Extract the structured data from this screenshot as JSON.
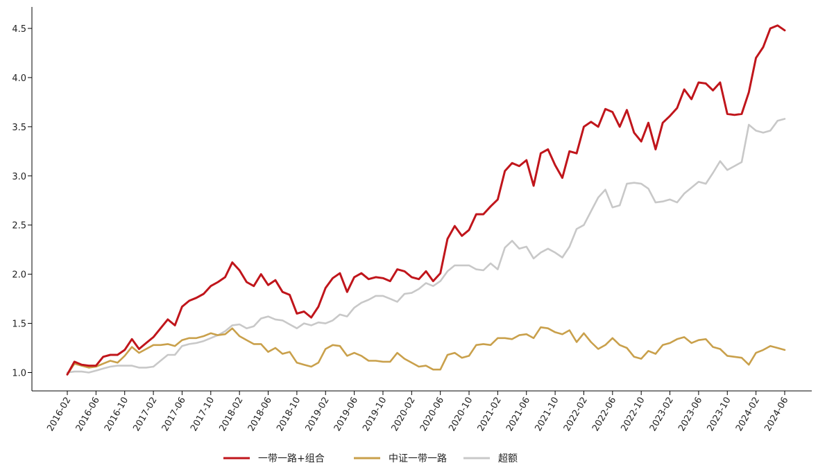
{
  "chart_data": {
    "type": "line",
    "title": "",
    "xlabel": "",
    "ylabel": "",
    "ylim": [
      0.85,
      4.7
    ],
    "yticks": [
      "1.0",
      "1.5",
      "2.0",
      "2.5",
      "3.0",
      "3.5",
      "4.0",
      "4.5"
    ],
    "ytick_values": [
      1.0,
      1.5,
      2.0,
      2.5,
      3.0,
      3.5,
      4.0,
      4.5
    ],
    "xtick_labels": [
      "2016-02",
      "2016-06",
      "2016-10",
      "2017-02",
      "2017-06",
      "2017-10",
      "2018-02",
      "2018-06",
      "2018-10",
      "2019-02",
      "2019-06",
      "2019-10",
      "2020-02",
      "2020-06",
      "2020-10",
      "2021-02",
      "2021-06",
      "2021-10",
      "2022-02",
      "2022-06",
      "2022-10",
      "2023-02",
      "2023-06",
      "2023-10",
      "2024-02",
      "2024-06"
    ],
    "xtick_index": [
      0,
      4,
      8,
      12,
      16,
      20,
      24,
      28,
      32,
      36,
      40,
      44,
      48,
      52,
      56,
      60,
      64,
      68,
      72,
      76,
      80,
      84,
      88,
      92,
      96,
      100
    ],
    "grid": false,
    "legend_position": "bottom-center",
    "series": [
      {
        "name": "一带一路+组合",
        "color": "#c0151b",
        "values": [
          0.98,
          1.11,
          1.08,
          1.07,
          1.07,
          1.16,
          1.18,
          1.18,
          1.23,
          1.34,
          1.24,
          1.3,
          1.36,
          1.45,
          1.54,
          1.48,
          1.67,
          1.73,
          1.76,
          1.8,
          1.88,
          1.92,
          1.97,
          2.12,
          2.04,
          1.92,
          1.88,
          2.0,
          1.89,
          1.94,
          1.82,
          1.79,
          1.6,
          1.62,
          1.56,
          1.67,
          1.86,
          1.96,
          2.01,
          1.82,
          1.97,
          2.01,
          1.95,
          1.97,
          1.96,
          1.93,
          2.05,
          2.03,
          1.97,
          1.95,
          2.03,
          1.93,
          2.01,
          2.36,
          2.49,
          2.39,
          2.45,
          2.61,
          2.61,
          2.69,
          2.76,
          3.05,
          3.13,
          3.1,
          3.16,
          2.9,
          3.23,
          3.27,
          3.11,
          2.98,
          3.25,
          3.23,
          3.5,
          3.55,
          3.5,
          3.68,
          3.65,
          3.5,
          3.67,
          3.44,
          3.35,
          3.54,
          3.27,
          3.54,
          3.61,
          3.69,
          3.88,
          3.78,
          3.95,
          3.94,
          3.87,
          3.95,
          3.63,
          3.62,
          3.63,
          3.85,
          4.2,
          4.31,
          4.5,
          4.53,
          4.48
        ]
      },
      {
        "name": "中证一带一路",
        "color": "#c9a04b",
        "values": [
          0.98,
          1.09,
          1.07,
          1.05,
          1.06,
          1.09,
          1.12,
          1.1,
          1.17,
          1.26,
          1.2,
          1.24,
          1.28,
          1.28,
          1.29,
          1.27,
          1.33,
          1.35,
          1.35,
          1.37,
          1.4,
          1.38,
          1.39,
          1.45,
          1.37,
          1.33,
          1.29,
          1.29,
          1.21,
          1.25,
          1.19,
          1.21,
          1.1,
          1.08,
          1.06,
          1.1,
          1.24,
          1.28,
          1.27,
          1.17,
          1.2,
          1.17,
          1.12,
          1.12,
          1.11,
          1.11,
          1.2,
          1.14,
          1.1,
          1.06,
          1.07,
          1.03,
          1.03,
          1.18,
          1.2,
          1.15,
          1.17,
          1.28,
          1.29,
          1.28,
          1.35,
          1.35,
          1.34,
          1.38,
          1.39,
          1.35,
          1.46,
          1.45,
          1.41,
          1.39,
          1.43,
          1.31,
          1.4,
          1.31,
          1.24,
          1.28,
          1.35,
          1.28,
          1.25,
          1.16,
          1.14,
          1.22,
          1.19,
          1.28,
          1.3,
          1.34,
          1.36,
          1.3,
          1.33,
          1.34,
          1.26,
          1.24,
          1.17,
          1.16,
          1.15,
          1.08,
          1.2,
          1.23,
          1.27,
          1.25,
          1.23
        ]
      },
      {
        "name": "超额",
        "color": "#c8c8c8",
        "values": [
          1.0,
          1.01,
          1.01,
          1.0,
          1.02,
          1.04,
          1.06,
          1.07,
          1.07,
          1.07,
          1.05,
          1.05,
          1.06,
          1.12,
          1.18,
          1.18,
          1.27,
          1.29,
          1.3,
          1.32,
          1.35,
          1.38,
          1.42,
          1.48,
          1.49,
          1.45,
          1.47,
          1.55,
          1.57,
          1.54,
          1.53,
          1.49,
          1.45,
          1.5,
          1.48,
          1.51,
          1.5,
          1.53,
          1.59,
          1.57,
          1.66,
          1.71,
          1.74,
          1.78,
          1.78,
          1.75,
          1.72,
          1.8,
          1.81,
          1.85,
          1.91,
          1.88,
          1.93,
          2.03,
          2.09,
          2.09,
          2.09,
          2.05,
          2.04,
          2.11,
          2.05,
          2.27,
          2.34,
          2.26,
          2.28,
          2.16,
          2.22,
          2.26,
          2.22,
          2.17,
          2.28,
          2.46,
          2.5,
          2.64,
          2.78,
          2.86,
          2.68,
          2.7,
          2.92,
          2.93,
          2.92,
          2.87,
          2.73,
          2.74,
          2.76,
          2.73,
          2.82,
          2.88,
          2.94,
          2.92,
          3.03,
          3.15,
          3.06,
          3.1,
          3.14,
          3.52,
          3.46,
          3.44,
          3.46,
          3.56,
          3.58
        ]
      }
    ]
  }
}
